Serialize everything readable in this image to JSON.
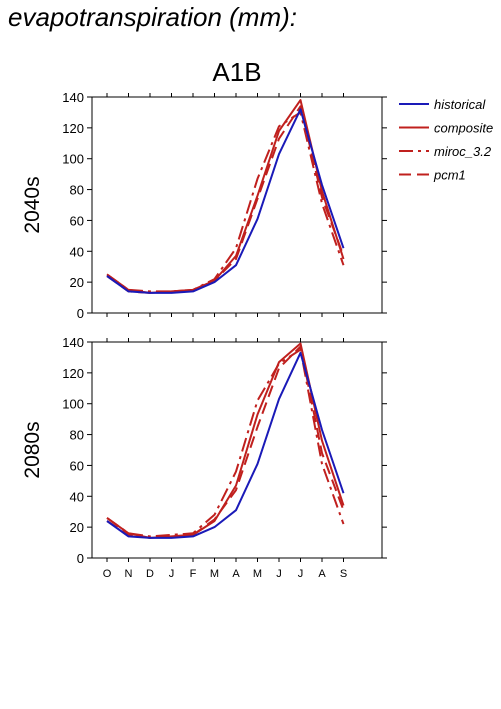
{
  "page": {
    "title": "evapotranspiration (mm):"
  },
  "chart_data": {
    "type": "line",
    "scenario": "A1B",
    "categories": [
      "O",
      "N",
      "D",
      "J",
      "F",
      "M",
      "A",
      "M",
      "J",
      "J",
      "A",
      "S"
    ],
    "ylim": [
      0,
      140
    ],
    "yticks": [
      0,
      20,
      40,
      60,
      80,
      100,
      120,
      140
    ],
    "legend_placement": "top-right",
    "legend": [
      {
        "name": "historical",
        "color": "#1a1ab8",
        "dash": "solid"
      },
      {
        "name": "composite",
        "color": "#c0201e",
        "dash": "solid"
      },
      {
        "name": "miroc_3.2",
        "color": "#c0201e",
        "dash": "dashdot"
      },
      {
        "name": "pcm1",
        "color": "#c0201e",
        "dash": "dashed"
      }
    ],
    "panels": [
      {
        "row_label": "2040s",
        "series": [
          {
            "name": "historical",
            "values": [
              24,
              14,
              13,
              13,
              14,
              20,
              31,
              61,
              103,
              132,
              83,
              42
            ]
          },
          {
            "name": "composite",
            "values": [
              25,
              15,
              13,
              14,
              15,
              21,
              37,
              76,
              118,
              138,
              79,
              35
            ]
          },
          {
            "name": "miroc_3.2",
            "values": [
              25,
              15,
              14,
              14,
              15,
              22,
              42,
              87,
              121,
              130,
              71,
              31
            ]
          },
          {
            "name": "pcm1",
            "values": [
              24,
              14,
              13,
              14,
              15,
              21,
              35,
              74,
              113,
              134,
              75,
              37
            ]
          }
        ]
      },
      {
        "row_label": "2080s",
        "series": [
          {
            "name": "historical",
            "values": [
              24,
              14,
              13,
              13,
              14,
              20,
              31,
              61,
              103,
              133,
              83,
              42
            ]
          },
          {
            "name": "composite",
            "values": [
              26,
              16,
              13,
              14,
              15,
              24,
              47,
              93,
              127,
              139,
              76,
              34
            ]
          },
          {
            "name": "miroc_3.2",
            "values": [
              26,
              16,
              14,
              15,
              16,
              28,
              56,
              102,
              126,
              135,
              61,
              22
            ]
          },
          {
            "name": "pcm1",
            "values": [
              24,
              15,
              13,
              14,
              15,
              25,
              44,
              85,
              123,
              137,
              68,
              31
            ]
          }
        ]
      }
    ]
  }
}
